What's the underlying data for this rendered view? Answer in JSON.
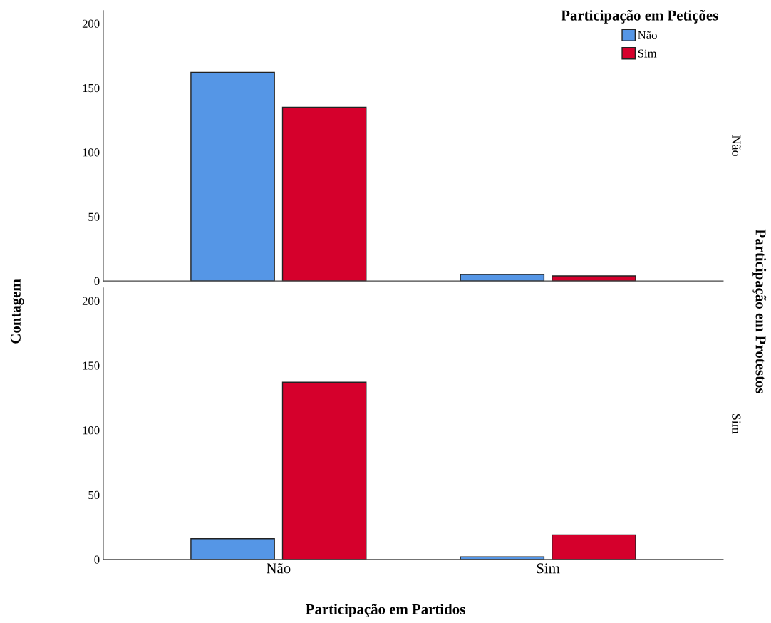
{
  "chart_data": [
    {
      "type": "bar",
      "categories": [
        null,
        null
      ],
      "ylabel": "Contagem",
      "y2label": "Participação em Protestos",
      "annotations": [
        "Não"
      ],
      "legend_title": "Participação em Petições",
      "legend": "top right",
      "ylim": [
        0,
        210
      ],
      "yticks": [
        0,
        50,
        100,
        150,
        200
      ],
      "tick_labels": "y",
      "series": [
        {
          "name": "Não",
          "color": "#5596e6",
          "values": [
            162,
            5
          ]
        },
        {
          "name": "Sim",
          "color": "#d5002c",
          "values": [
            135,
            4
          ]
        }
      ]
    },
    {
      "type": "bar",
      "categories": [
        "Não",
        "Sim"
      ],
      "xlabel": "Participação em Partidos",
      "annotations": [
        "Sim"
      ],
      "ylim": [
        0,
        210
      ],
      "yticks": [
        0,
        50,
        100,
        150,
        200
      ],
      "series": [
        {
          "color": "#5596e6",
          "values": [
            16,
            2
          ]
        },
        {
          "color": "#d5002c",
          "values": [
            137,
            19
          ]
        }
      ]
    }
  ]
}
